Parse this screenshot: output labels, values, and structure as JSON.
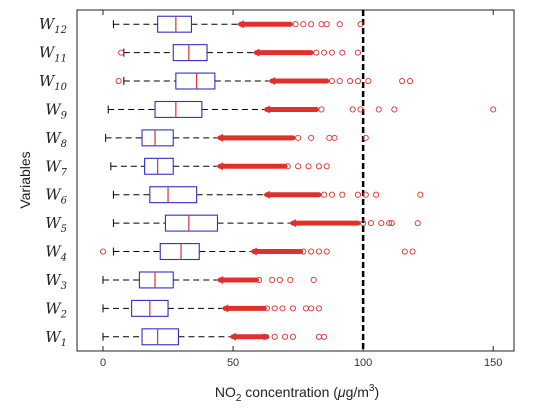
{
  "chart_data": {
    "type": "boxplot",
    "orientation": "horizontal",
    "title": "",
    "xlabel": {
      "before": "NO",
      "sub": "2",
      "mid": " concentration (",
      "mu": "μ",
      "unit": "g/m",
      "sup": "3",
      "after": ")"
    },
    "ylabel": "Variables",
    "xlim": [
      -10,
      158
    ],
    "xticks": [
      0,
      50,
      100,
      150
    ],
    "xtick_labels": [
      "0",
      "50",
      "100",
      "150"
    ],
    "reference_line": {
      "x": 100,
      "style": "dashed",
      "color": "#000000"
    },
    "colors": {
      "box": "#3030c8",
      "median": "#e0302c",
      "whisker": "#000000",
      "outlier": "#e0302c"
    },
    "series": [
      {
        "label": "W",
        "sub": "1",
        "whisker_low": 0,
        "q1": 15,
        "median": 21,
        "q3": 29,
        "whisker_high": 50,
        "dense_outliers_to": 63,
        "outliers": [
          62,
          66,
          70,
          73,
          83,
          85
        ]
      },
      {
        "label": "W",
        "sub": "2",
        "whisker_low": 0,
        "q1": 11,
        "median": 18,
        "q3": 25,
        "whisker_high": 47,
        "dense_outliers_to": 62,
        "outliers": [
          63,
          66,
          69,
          73,
          78,
          80,
          83
        ]
      },
      {
        "label": "W",
        "sub": "3",
        "whisker_low": 0,
        "q1": 14,
        "median": 20,
        "q3": 27,
        "whisker_high": 45,
        "dense_outliers_to": 59,
        "outliers": [
          60,
          65,
          68,
          72,
          81
        ]
      },
      {
        "label": "W",
        "sub": "4",
        "whisker_low": 4,
        "q1": 22,
        "median": 30,
        "q3": 37,
        "whisker_high": 58,
        "dense_outliers_to": 76,
        "outliers": [
          0,
          77,
          80,
          83,
          86,
          116,
          119
        ]
      },
      {
        "label": "W",
        "sub": "5",
        "whisker_low": 4,
        "q1": 24,
        "median": 33,
        "q3": 44,
        "whisker_high": 73,
        "dense_outliers_to": 98,
        "outliers": [
          100,
          103,
          107,
          110,
          111,
          121
        ]
      },
      {
        "label": "W",
        "sub": "6",
        "whisker_low": 4,
        "q1": 18,
        "median": 25,
        "q3": 36,
        "whisker_high": 63,
        "dense_outliers_to": 83,
        "outliers": [
          85,
          88,
          92,
          98,
          101,
          105,
          122
        ]
      },
      {
        "label": "W",
        "sub": "7",
        "whisker_low": 3,
        "q1": 16,
        "median": 21,
        "q3": 27,
        "whisker_high": 45,
        "dense_outliers_to": 70,
        "outliers": [
          71,
          75,
          79,
          83,
          86
        ]
      },
      {
        "label": "W",
        "sub": "8",
        "whisker_low": 1,
        "q1": 15,
        "median": 20,
        "q3": 27,
        "whisker_high": 45,
        "dense_outliers_to": 73,
        "outliers": [
          75,
          80,
          87,
          89,
          101
        ]
      },
      {
        "label": "W",
        "sub": "9",
        "whisker_low": 2,
        "q1": 20,
        "median": 28,
        "q3": 38,
        "whisker_high": 63,
        "dense_outliers_to": 82,
        "outliers": [
          84,
          96,
          99,
          106,
          112,
          150
        ]
      },
      {
        "label": "W",
        "sub": "10",
        "whisker_low": 8,
        "q1": 28,
        "median": 36,
        "q3": 43,
        "whisker_high": 65,
        "dense_outliers_to": 86,
        "outliers": [
          6,
          88,
          91,
          95,
          98,
          102,
          115,
          118
        ]
      },
      {
        "label": "W",
        "sub": "11",
        "whisker_low": 8,
        "q1": 27,
        "median": 33,
        "q3": 40,
        "whisker_high": 59,
        "dense_outliers_to": 80,
        "outliers": [
          7,
          82,
          85,
          88,
          92,
          98
        ]
      },
      {
        "label": "W",
        "sub": "12",
        "whisker_low": 4,
        "q1": 21,
        "median": 28,
        "q3": 34,
        "whisker_high": 53,
        "dense_outliers_to": 72,
        "outliers": [
          74,
          77,
          80,
          84,
          86,
          91,
          99
        ]
      }
    ]
  }
}
